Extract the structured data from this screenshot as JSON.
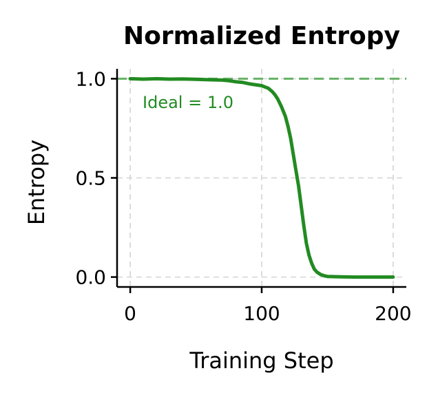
{
  "chart_data": {
    "type": "line",
    "title": "Normalized Entropy",
    "xlabel": "Training Step",
    "ylabel": "Entropy",
    "xlim": [
      -10,
      210
    ],
    "ylim": [
      -0.05,
      1.05
    ],
    "xticks": [
      0,
      100,
      200
    ],
    "xtick_labels": [
      "0",
      "100",
      "200"
    ],
    "yticks": [
      0.0,
      0.5,
      1.0
    ],
    "ytick_labels": [
      "0.0",
      "0.5",
      "1.0"
    ],
    "grid": true,
    "series": [
      {
        "color": "#228B22",
        "x": [
          0,
          10,
          20,
          30,
          40,
          50,
          60,
          70,
          75,
          80,
          85,
          90,
          95,
          100,
          105,
          108,
          110,
          112,
          115,
          118,
          120,
          122,
          124,
          126,
          128,
          130,
          132,
          134,
          136,
          138,
          140,
          142,
          145,
          148,
          150,
          155,
          160,
          170,
          180,
          190,
          200
        ],
        "y": [
          1.0,
          0.998,
          1.0,
          0.998,
          0.999,
          0.997,
          0.995,
          0.993,
          0.99,
          0.985,
          0.982,
          0.975,
          0.97,
          0.965,
          0.952,
          0.935,
          0.92,
          0.9,
          0.86,
          0.81,
          0.76,
          0.7,
          0.62,
          0.54,
          0.46,
          0.36,
          0.26,
          0.17,
          0.11,
          0.07,
          0.04,
          0.025,
          0.012,
          0.006,
          0.003,
          0.002,
          0.001,
          0.0,
          0.0,
          0.0,
          0.0
        ]
      }
    ],
    "reference_line": {
      "y": 1.0,
      "color": "#66B266",
      "label": "Ideal = 1.0"
    }
  }
}
